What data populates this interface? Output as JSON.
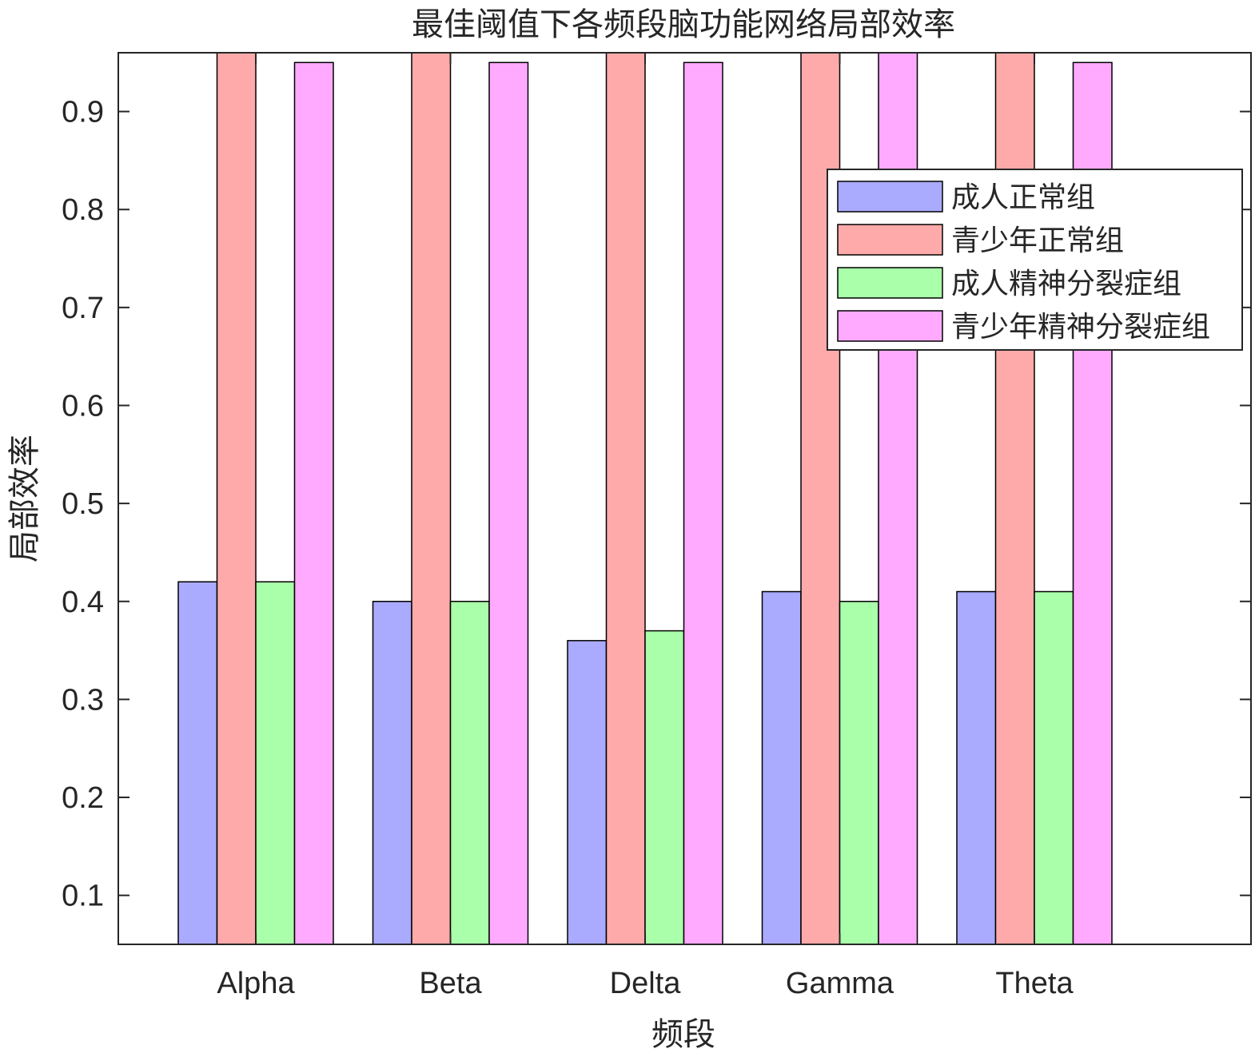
{
  "chart_data": {
    "type": "bar",
    "title": "最佳阈值下各频段脑功能网络局部效率",
    "xlabel": "频段",
    "ylabel": "局部效率",
    "categories": [
      "Alpha",
      "Beta",
      "Delta",
      "Gamma",
      "Theta"
    ],
    "ylim": [
      0.05,
      0.96
    ],
    "yticks": [
      "0.1",
      "0.2",
      "0.3",
      "0.4",
      "0.5",
      "0.6",
      "0.7",
      "0.8",
      "0.9"
    ],
    "grid": false,
    "legend_position": "top-right",
    "series": [
      {
        "name": "成人正常组",
        "color": "#aaaaff",
        "values": [
          0.42,
          0.4,
          0.36,
          0.41,
          0.41
        ]
      },
      {
        "name": "青少年正常组",
        "color": "#ffaaaa",
        "values": [
          0.96,
          0.96,
          0.96,
          0.96,
          0.96
        ]
      },
      {
        "name": "成人精神分裂症组",
        "color": "#aaffaa",
        "values": [
          0.42,
          0.4,
          0.37,
          0.4,
          0.41
        ]
      },
      {
        "name": "青少年精神分裂症组",
        "color": "#ffaaff",
        "values": [
          0.95,
          0.95,
          0.95,
          0.96,
          0.95
        ]
      }
    ]
  }
}
